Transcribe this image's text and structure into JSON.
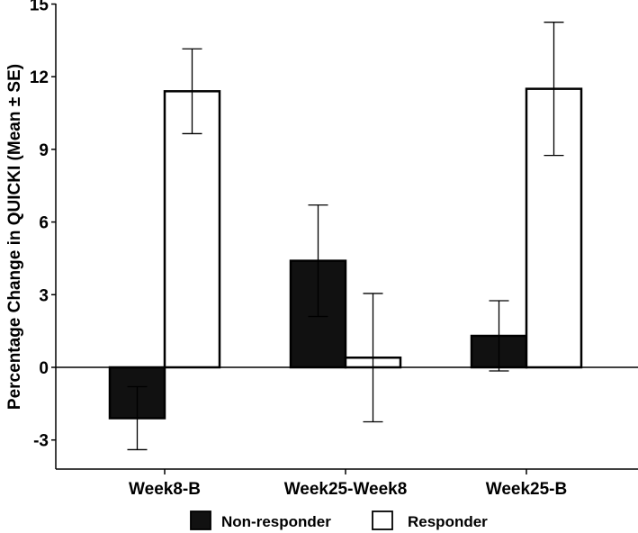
{
  "chart_data": {
    "type": "bar",
    "title": "",
    "xlabel": "",
    "ylabel": "Percentage Change in QUICKI (Mean ± SE)",
    "ylim": [
      -4.5,
      15.5
    ],
    "yticks": [
      -3,
      0,
      3,
      6,
      9,
      12,
      15
    ],
    "ytick_labels": [
      "-3",
      "0",
      "3",
      "6",
      "9",
      "12",
      "15"
    ],
    "categories": [
      "Week8-B",
      "Week25-Week8",
      "Week25-B"
    ],
    "series": [
      {
        "name": "Non-responder",
        "color": "#111111",
        "values": [
          -2.1,
          4.4,
          1.3
        ],
        "se": [
          1.3,
          2.3,
          1.45
        ]
      },
      {
        "name": "Responder",
        "color": "#ffffff",
        "values": [
          11.4,
          0.4,
          11.5
        ],
        "se": [
          1.75,
          2.65,
          2.75
        ]
      }
    ],
    "legend_position": "bottom",
    "grid": false
  }
}
